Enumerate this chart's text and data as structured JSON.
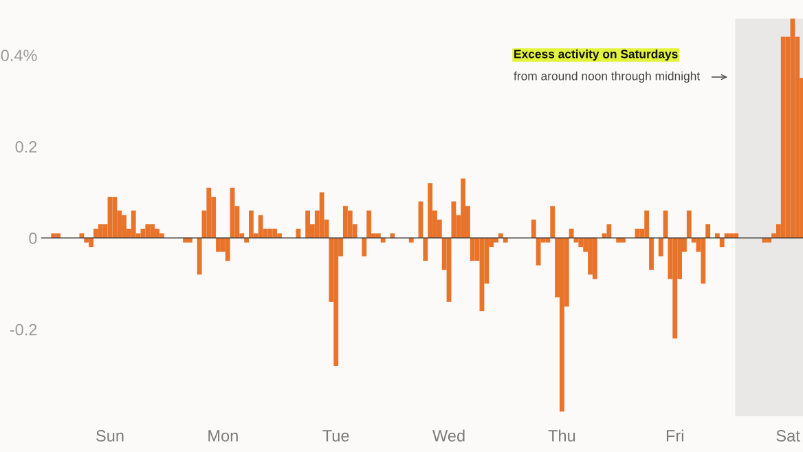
{
  "chart_data": {
    "type": "bar",
    "color": "#e8742c",
    "categories": [
      null,
      null,
      null,
      null,
      null,
      null,
      null,
      null,
      null,
      null,
      null,
      null,
      "Sun",
      null,
      null,
      null,
      null,
      null,
      null,
      null,
      null,
      null,
      null,
      null,
      null,
      null,
      null,
      null,
      null,
      null,
      null,
      null,
      null,
      null,
      null,
      null,
      "Mon",
      null,
      null,
      null,
      null,
      null,
      null,
      null,
      null,
      null,
      null,
      null,
      null,
      null,
      null,
      null,
      null,
      null,
      null,
      null,
      null,
      null,
      null,
      null,
      "Tue",
      null,
      null,
      null,
      null,
      null,
      null,
      null,
      null,
      null,
      null,
      null,
      null,
      null,
      null,
      null,
      null,
      null,
      null,
      null,
      null,
      null,
      null,
      null,
      "Wed",
      null,
      null,
      null,
      null,
      null,
      null,
      null,
      null,
      null,
      null,
      null,
      null,
      null,
      null,
      null,
      null,
      null,
      null,
      null,
      null,
      null,
      null,
      null,
      "Thu",
      null,
      null,
      null,
      null,
      null,
      null,
      null,
      null,
      null,
      null,
      null,
      null,
      null,
      null,
      null,
      null,
      null,
      null,
      null,
      null,
      null,
      null,
      null,
      "Fri",
      null,
      null,
      null,
      null,
      null,
      null,
      null,
      null,
      null,
      null,
      null,
      null,
      null,
      null,
      null,
      null,
      null,
      null,
      null,
      null,
      null,
      null,
      null,
      "Sat",
      null,
      null,
      null
    ],
    "values": [
      0.01,
      0.01,
      0,
      0,
      0,
      0,
      0.01,
      -0.01,
      -0.02,
      0.02,
      0.03,
      0.03,
      0.09,
      0.09,
      0.06,
      0.05,
      0.02,
      0.06,
      0.01,
      0.02,
      0.03,
      0.03,
      0.02,
      0.01,
      0,
      0,
      0,
      0,
      -0.01,
      -0.01,
      0,
      -0.08,
      0.06,
      0.11,
      0.09,
      -0.03,
      -0.03,
      -0.05,
      0.11,
      0.07,
      0.01,
      -0.01,
      0.06,
      0.01,
      0.05,
      0.02,
      0.02,
      0.02,
      0.01,
      0,
      0,
      0,
      0.02,
      0,
      0.06,
      0.03,
      0.06,
      0.1,
      0.04,
      -0.14,
      -0.28,
      -0.04,
      0.07,
      0.06,
      0.03,
      0,
      -0.04,
      0.06,
      0.01,
      0.01,
      -0.01,
      0,
      0.01,
      0,
      0,
      0,
      -0.01,
      0,
      0.08,
      -0.05,
      0.12,
      0.06,
      0.04,
      -0.07,
      -0.14,
      0.08,
      0.05,
      0.13,
      0.07,
      -0.05,
      -0.05,
      -0.16,
      -0.1,
      -0.02,
      -0.01,
      0.01,
      -0.01,
      0,
      0,
      0,
      0,
      0,
      0.04,
      -0.06,
      -0.01,
      -0.01,
      0.07,
      -0.13,
      -0.38,
      -0.15,
      0.02,
      -0.01,
      -0.02,
      -0.03,
      -0.08,
      -0.09,
      0,
      0.01,
      0.03,
      0,
      -0.01,
      -0.01,
      0,
      0,
      0.02,
      0.02,
      0.06,
      -0.07,
      0,
      -0.04,
      0.06,
      -0.09,
      -0.22,
      -0.09,
      -0.03,
      0.06,
      -0.01,
      -0.03,
      -0.1,
      0.03,
      0,
      0.01,
      -0.02,
      0.01,
      0.01,
      0.01,
      0,
      0,
      0,
      0,
      0,
      -0.01,
      -0.01,
      0.01,
      0.03,
      0.44,
      0.44,
      0.48,
      0.44,
      0.35
    ],
    "ylim": [
      -0.39,
      0.48
    ],
    "yticks": [
      {
        "value": 0.4,
        "label": "0.4%"
      },
      0.2,
      0,
      {
        "value": -0.2,
        "label": "-0.2"
      }
    ],
    "ref_lines": [
      {
        "axis": "y",
        "value": 0,
        "color": "#333333"
      }
    ],
    "annotations": [
      "Excess activity on Saturdays",
      "from around noon through midnight"
    ],
    "grid": false,
    "legend": false
  }
}
